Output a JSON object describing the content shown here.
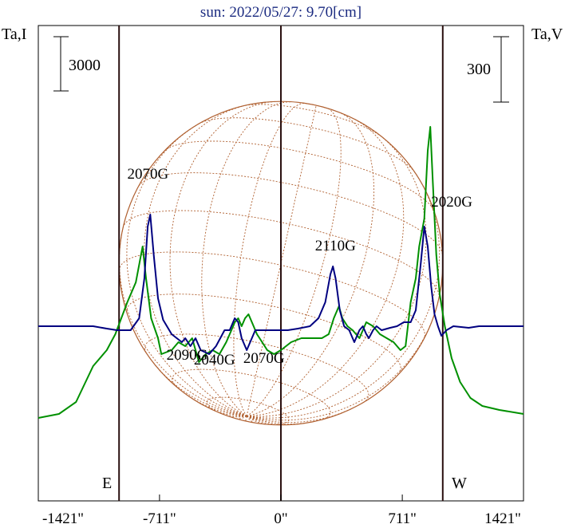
{
  "chart_data": {
    "type": "line",
    "title": "sun: 2022/05/27: 9.70[cm]",
    "left_axis_label": "Ta,I",
    "right_axis_label": "Ta,V",
    "left_scale_label": "3000",
    "right_scale_label": "300",
    "x_ticks": [
      {
        "value": -1421,
        "label": "-1421\""
      },
      {
        "value": -711,
        "label": "-711\""
      },
      {
        "value": 0,
        "label": "0\""
      },
      {
        "value": 711,
        "label": "711\""
      },
      {
        "value": 1421,
        "label": "1421\""
      }
    ],
    "xlim": [
      -1421,
      1421
    ],
    "limb_markers": [
      {
        "x": -948,
        "label": "E"
      },
      {
        "x": 948,
        "label": "W"
      }
    ],
    "center_line_x": 0,
    "solar_disk": {
      "radius_arcsec": 948,
      "color": "#b06030"
    },
    "series": [
      {
        "color": "#000080",
        "values_y_relative": "low = larger",
        "points": [
          [
            -1421,
            0.0
          ],
          [
            -1100,
            0.0
          ],
          [
            -1020,
            -0.03
          ],
          [
            -960,
            -0.05
          ],
          [
            -880,
            -0.05
          ],
          [
            -830,
            0.1
          ],
          [
            -800,
            0.6
          ],
          [
            -780,
            1.25
          ],
          [
            -765,
            1.4
          ],
          [
            -745,
            0.9
          ],
          [
            -720,
            0.35
          ],
          [
            -690,
            0.08
          ],
          [
            -640,
            -0.1
          ],
          [
            -580,
            -0.2
          ],
          [
            -560,
            -0.15
          ],
          [
            -530,
            -0.25
          ],
          [
            -500,
            -0.15
          ],
          [
            -470,
            -0.3
          ],
          [
            -420,
            -0.35
          ],
          [
            -380,
            -0.25
          ],
          [
            -330,
            -0.05
          ],
          [
            -300,
            -0.05
          ],
          [
            -270,
            0.1
          ],
          [
            -250,
            0.05
          ],
          [
            -230,
            -0.15
          ],
          [
            -200,
            -0.3
          ],
          [
            -150,
            -0.05
          ],
          [
            -80,
            -0.05
          ],
          [
            -30,
            -0.05
          ],
          [
            40,
            -0.05
          ],
          [
            100,
            -0.03
          ],
          [
            170,
            0.0
          ],
          [
            220,
            0.1
          ],
          [
            260,
            0.3
          ],
          [
            290,
            0.65
          ],
          [
            305,
            0.75
          ],
          [
            320,
            0.6
          ],
          [
            345,
            0.2
          ],
          [
            370,
            0.0
          ],
          [
            400,
            -0.05
          ],
          [
            430,
            -0.2
          ],
          [
            460,
            -0.05
          ],
          [
            480,
            0.0
          ],
          [
            500,
            -0.1
          ],
          [
            515,
            -0.15
          ],
          [
            540,
            -0.05
          ],
          [
            560,
            0.0
          ],
          [
            590,
            -0.05
          ],
          [
            640,
            -0.02
          ],
          [
            680,
            0.0
          ],
          [
            720,
            0.05
          ],
          [
            760,
            0.05
          ],
          [
            790,
            0.2
          ],
          [
            820,
            0.8
          ],
          [
            840,
            1.25
          ],
          [
            860,
            1.0
          ],
          [
            880,
            0.5
          ],
          [
            900,
            0.15
          ],
          [
            920,
            0.0
          ],
          [
            940,
            -0.12
          ],
          [
            970,
            -0.05
          ],
          [
            1010,
            0.0
          ],
          [
            1100,
            -0.02
          ],
          [
            1160,
            0.0
          ],
          [
            1421,
            0.0
          ]
        ]
      },
      {
        "color": "#009000",
        "points": [
          [
            -1421,
            -1.15
          ],
          [
            -1300,
            -1.1
          ],
          [
            -1200,
            -0.95
          ],
          [
            -1100,
            -0.5
          ],
          [
            -1020,
            -0.3
          ],
          [
            -970,
            -0.1
          ],
          [
            -900,
            0.3
          ],
          [
            -850,
            0.55
          ],
          [
            -810,
            1.0
          ],
          [
            -790,
            0.6
          ],
          [
            -760,
            0.1
          ],
          [
            -720,
            -0.15
          ],
          [
            -700,
            -0.35
          ],
          [
            -640,
            -0.3
          ],
          [
            -600,
            -0.2
          ],
          [
            -560,
            -0.25
          ],
          [
            -520,
            -0.15
          ],
          [
            -480,
            -0.45
          ],
          [
            -440,
            -0.35
          ],
          [
            -400,
            -0.3
          ],
          [
            -360,
            -0.35
          ],
          [
            -320,
            -0.2
          ],
          [
            -290,
            -0.05
          ],
          [
            -270,
            0.05
          ],
          [
            -250,
            0.1
          ],
          [
            -230,
            0.0
          ],
          [
            -210,
            0.1
          ],
          [
            -190,
            0.15
          ],
          [
            -160,
            0.0
          ],
          [
            -140,
            -0.1
          ],
          [
            -110,
            -0.2
          ],
          [
            -80,
            -0.3
          ],
          [
            -40,
            -0.35
          ],
          [
            0,
            -0.3
          ],
          [
            60,
            -0.2
          ],
          [
            120,
            -0.15
          ],
          [
            180,
            -0.15
          ],
          [
            240,
            -0.15
          ],
          [
            280,
            -0.1
          ],
          [
            310,
            0.1
          ],
          [
            340,
            0.25
          ],
          [
            360,
            0.1
          ],
          [
            390,
            0.0
          ],
          [
            420,
            -0.05
          ],
          [
            460,
            -0.15
          ],
          [
            500,
            0.05
          ],
          [
            540,
            0.0
          ],
          [
            580,
            -0.1
          ],
          [
            620,
            -0.15
          ],
          [
            660,
            -0.2
          ],
          [
            700,
            -0.3
          ],
          [
            730,
            -0.25
          ],
          [
            760,
            0.3
          ],
          [
            790,
            0.6
          ],
          [
            810,
            1.0
          ],
          [
            840,
            1.35
          ],
          [
            860,
            2.2
          ],
          [
            875,
            2.5
          ],
          [
            890,
            1.8
          ],
          [
            910,
            0.9
          ],
          [
            930,
            0.4
          ],
          [
            960,
            0.0
          ],
          [
            1000,
            -0.4
          ],
          [
            1050,
            -0.7
          ],
          [
            1110,
            -0.9
          ],
          [
            1180,
            -1.0
          ],
          [
            1280,
            -1.05
          ],
          [
            1421,
            -1.1
          ]
        ]
      }
    ],
    "annotations": [
      {
        "text": "2070G",
        "x": -900,
        "y": 1.85
      },
      {
        "text": "2020G",
        "x": 880,
        "y": 1.5
      },
      {
        "text": "2110G",
        "x": 200,
        "y": 0.95
      },
      {
        "text": "2090G",
        "x": -670,
        "y": -0.42
      },
      {
        "text": "2040G",
        "x": -510,
        "y": -0.48
      },
      {
        "text": "2070G",
        "x": -220,
        "y": -0.46
      }
    ]
  }
}
